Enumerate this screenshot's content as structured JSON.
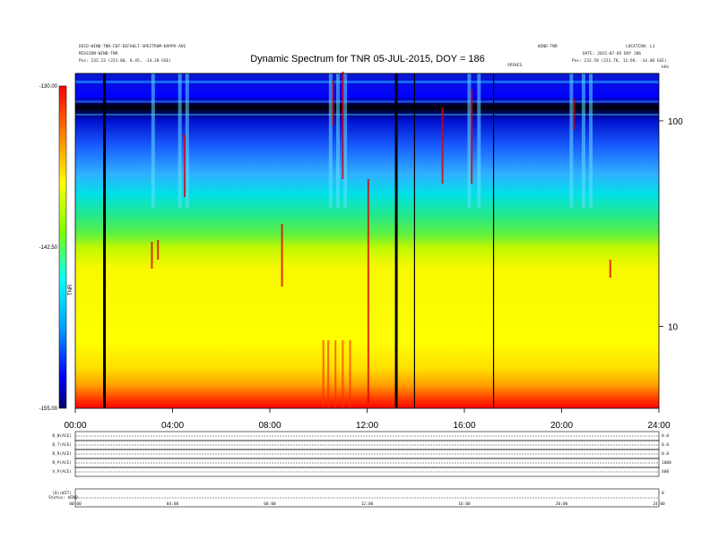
{
  "header": {
    "title": "Dynamic Spectrum for TNR 05-JUL-2015, DOY = 186",
    "top_left_lines": [
      "DSCD-WIND-TNR-CDF-DEFAULT-SPECTRUM-KAPPA-AVG",
      "MISSION-WIND-TNR",
      "Pos:   232.23 (231.80, 8.45, -14.20 GSE)"
    ],
    "top_mid_right": "WIND-TNR",
    "top_right_line1": "LOCATION: L1",
    "top_right_line2": "DATE: 2015-07-05 DOY 186",
    "top_right_pos": "Pos:   232.58 (231.78, 12.69, -14.40 GSE)",
    "small_center_label": "SPIKES",
    "small_right_label": "kHz"
  },
  "chart_data": {
    "type": "heatmap",
    "title": "Dynamic Spectrum for TNR 05-JUL-2015, DOY = 186",
    "xlabel": "",
    "ylabel": "kHz",
    "x_ticks": [
      "00:00",
      "04:00",
      "08:00",
      "12:00",
      "16:00",
      "20:00",
      "24:00"
    ],
    "xlim_hours": [
      0,
      24
    ],
    "y_scale": "log",
    "ylim_khz": [
      4,
      170
    ],
    "y_ticks": [
      "100",
      "10"
    ],
    "colorbar": {
      "label": "TNR",
      "ticks": [
        "-130.00",
        "-142.50",
        "-155.00"
      ],
      "range": [
        -155.0,
        -130.0
      ],
      "colors": [
        "#000070",
        "#0000ff",
        "#00a0ff",
        "#00ffff",
        "#00ff40",
        "#c8ff00",
        "#ffff00",
        "#ff8000",
        "#ff0000"
      ]
    },
    "black_gaps_hours": [
      1.2,
      13.2
    ],
    "thin_gaps_hours": [
      13.95,
      17.2
    ]
  },
  "bottom": {
    "panel_labels": [
      "B_N(ACE)",
      "B_T(ACE)",
      "B_R(ACE)",
      "N_P(ACE)",
      "V_P(ACE)",
      "|B|(WIT)"
    ],
    "right_axis_labels": [
      "0.0",
      "0.0",
      "0.0",
      "1000",
      "400",
      "0"
    ],
    "xtime_ticks": [
      "00:00",
      "04:00",
      "08:00",
      "12:00",
      "16:00",
      "20:00",
      "24:00"
    ],
    "footer_left": "Status:",
    "footer_value": "WIND"
  }
}
